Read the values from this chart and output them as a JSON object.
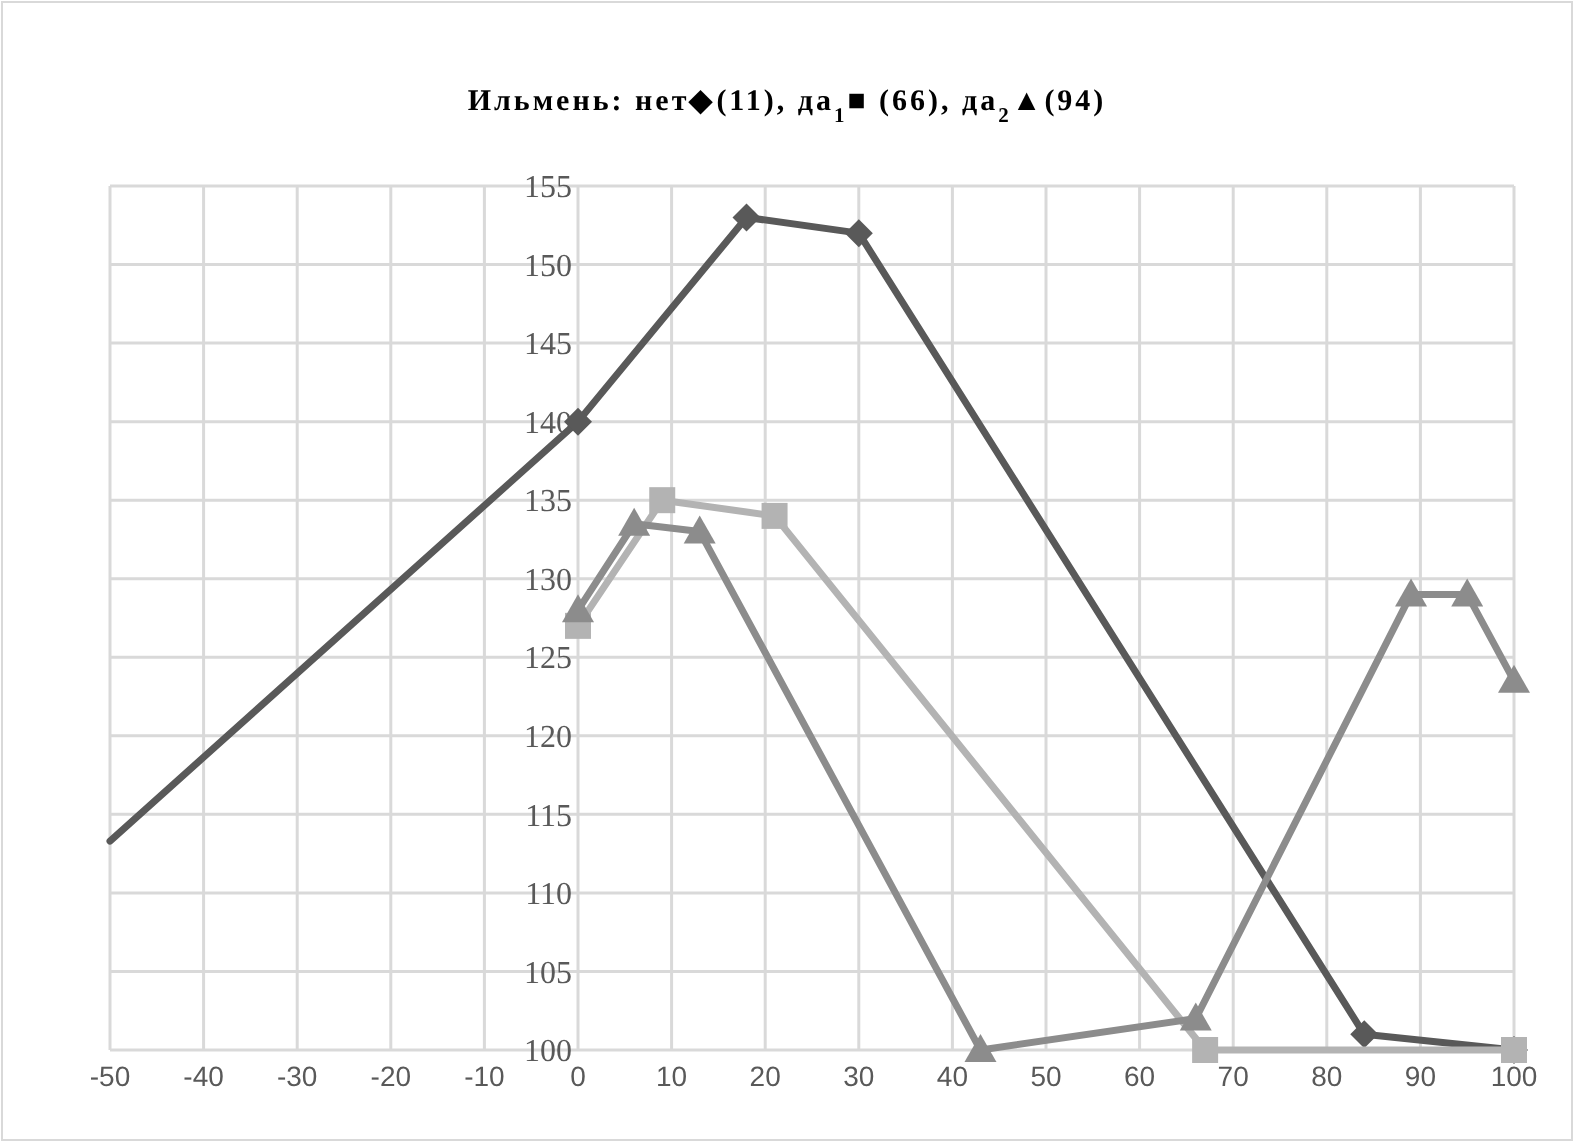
{
  "chart_data": {
    "type": "line",
    "title": "Ильмень: нет◆(11), да$_{1}$■ (66), да$_{2}$▲(94)",
    "xlim": [
      -50,
      100
    ],
    "xticks": [
      -50,
      -40,
      -30,
      -20,
      -10,
      0,
      10,
      20,
      30,
      40,
      50,
      60,
      70,
      80,
      90,
      100
    ],
    "ylim": [
      100,
      155
    ],
    "yticks": [
      100,
      105,
      110,
      115,
      120,
      125,
      130,
      135,
      140,
      145,
      150,
      155
    ],
    "grid": true,
    "series": [
      {
        "color": "#595959",
        "x": [
          -50,
          0
        ],
        "values": [
          113.3,
          140
        ]
      },
      {
        "color": "#595959",
        "marker": "diamond",
        "x": [
          0,
          18,
          30,
          84,
          100
        ],
        "values": [
          140,
          153,
          152,
          101,
          100
        ]
      },
      {
        "color": "#b3b3b3",
        "marker": "square",
        "x": [
          0,
          9,
          21,
          67,
          100
        ],
        "values": [
          127,
          135,
          134,
          100,
          100
        ]
      },
      {
        "color": "#8c8c8c",
        "marker": "triangle",
        "x": [
          0,
          6,
          13,
          43,
          66,
          89,
          95,
          100
        ],
        "values": [
          128,
          133.5,
          133,
          100,
          102,
          129,
          129,
          123.5
        ]
      }
    ]
  }
}
